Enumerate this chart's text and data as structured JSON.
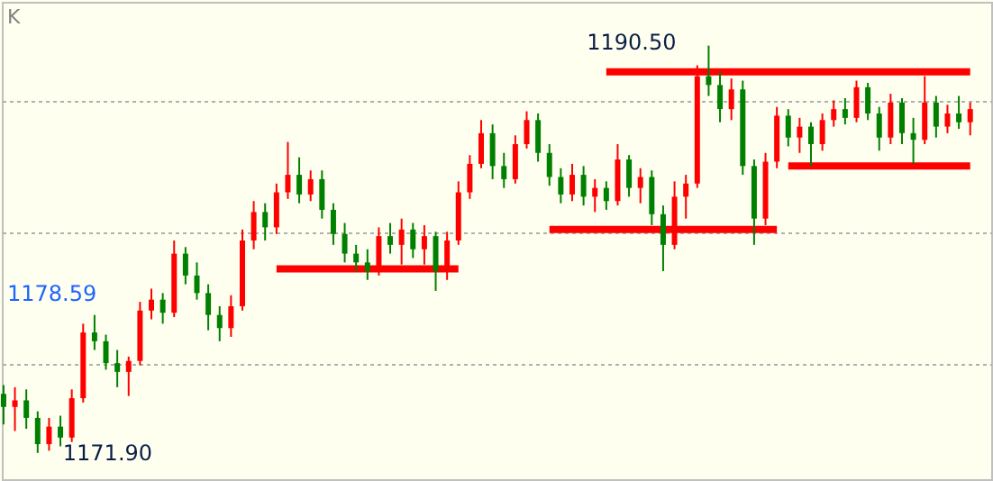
{
  "chart_data": {
    "type": "candlestick",
    "title": "K",
    "categories": [
      null,
      null,
      null,
      null,
      null,
      null,
      null,
      null,
      null,
      null,
      null,
      null,
      null,
      null,
      null,
      null,
      null,
      null,
      null,
      null,
      null,
      null,
      null,
      null,
      null,
      null,
      null,
      null,
      null,
      null,
      null,
      null,
      null,
      null,
      null,
      null,
      null,
      null,
      null,
      null,
      null,
      null,
      null,
      null,
      null,
      null,
      null,
      null,
      null,
      null,
      null,
      null,
      null,
      null,
      null,
      null,
      null,
      null,
      null,
      null,
      null,
      null,
      null,
      null,
      null,
      null,
      null,
      null,
      null,
      null,
      null,
      null,
      null,
      null,
      null,
      null,
      null,
      null,
      null,
      null,
      null,
      null,
      null,
      null,
      null,
      null
    ],
    "ohlc": [
      [
        1174.6,
        1175.0,
        1173.2,
        1174.0
      ],
      [
        1174.0,
        1174.9,
        1172.9,
        1174.3
      ],
      [
        1174.3,
        1174.8,
        1173.0,
        1173.5
      ],
      [
        1173.5,
        1173.8,
        1171.9,
        1172.3
      ],
      [
        1172.3,
        1173.5,
        1172.0,
        1173.1
      ],
      [
        1173.1,
        1173.6,
        1172.2,
        1172.6
      ],
      [
        1172.6,
        1174.8,
        1172.4,
        1174.4
      ],
      [
        1174.4,
        1177.8,
        1174.2,
        1177.4
      ],
      [
        1177.4,
        1178.2,
        1176.6,
        1177.0
      ],
      [
        1177.0,
        1177.3,
        1175.7,
        1176.0
      ],
      [
        1176.0,
        1176.6,
        1174.9,
        1175.6
      ],
      [
        1175.6,
        1176.3,
        1174.5,
        1176.1
      ],
      [
        1176.1,
        1178.8,
        1175.9,
        1178.4
      ],
      [
        1178.4,
        1179.4,
        1178.0,
        1178.9
      ],
      [
        1178.9,
        1179.2,
        1177.8,
        1178.3
      ],
      [
        1178.3,
        1181.6,
        1178.1,
        1181.0
      ],
      [
        1181.0,
        1181.3,
        1179.6,
        1180.0
      ],
      [
        1180.0,
        1180.6,
        1178.9,
        1179.2
      ],
      [
        1179.2,
        1179.6,
        1177.5,
        1178.2
      ],
      [
        1178.2,
        1178.6,
        1177.0,
        1177.6
      ],
      [
        1177.6,
        1179.1,
        1177.2,
        1178.6
      ],
      [
        1178.6,
        1182.1,
        1178.4,
        1181.6
      ],
      [
        1181.6,
        1183.4,
        1181.2,
        1182.9
      ],
      [
        1182.9,
        1183.3,
        1181.6,
        1182.2
      ],
      [
        1182.2,
        1184.2,
        1181.9,
        1183.8
      ],
      [
        1183.8,
        1186.1,
        1183.5,
        1184.6
      ],
      [
        1184.6,
        1185.4,
        1183.3,
        1183.7
      ],
      [
        1183.7,
        1184.8,
        1183.4,
        1184.4
      ],
      [
        1184.4,
        1184.8,
        1182.6,
        1183.0
      ],
      [
        1183.0,
        1183.3,
        1181.4,
        1181.9
      ],
      [
        1181.9,
        1182.4,
        1180.6,
        1181.0
      ],
      [
        1181.0,
        1181.4,
        1180.2,
        1180.6
      ],
      [
        1180.6,
        1181.2,
        1179.8,
        1180.2
      ],
      [
        1180.2,
        1182.2,
        1180.0,
        1181.8
      ],
      [
        1181.8,
        1182.4,
        1181.0,
        1181.4
      ],
      [
        1181.4,
        1182.6,
        1180.5,
        1182.1
      ],
      [
        1182.1,
        1182.4,
        1180.8,
        1181.2
      ],
      [
        1181.2,
        1182.3,
        1180.5,
        1181.8
      ],
      [
        1181.8,
        1182.0,
        1179.3,
        1180.2
      ],
      [
        1180.2,
        1182.0,
        1179.8,
        1181.6
      ],
      [
        1181.6,
        1184.3,
        1181.4,
        1183.8
      ],
      [
        1183.8,
        1185.5,
        1183.5,
        1185.1
      ],
      [
        1185.1,
        1187.1,
        1184.9,
        1186.5
      ],
      [
        1186.5,
        1186.9,
        1184.4,
        1185.0
      ],
      [
        1185.0,
        1185.6,
        1184.0,
        1184.4
      ],
      [
        1184.4,
        1186.4,
        1184.2,
        1186.0
      ],
      [
        1186.0,
        1187.5,
        1185.8,
        1187.1
      ],
      [
        1187.1,
        1187.4,
        1185.2,
        1185.6
      ],
      [
        1185.6,
        1186.0,
        1184.1,
        1184.5
      ],
      [
        1184.5,
        1184.9,
        1183.3,
        1183.7
      ],
      [
        1183.7,
        1185.1,
        1183.4,
        1184.6
      ],
      [
        1184.6,
        1185.0,
        1183.2,
        1183.6
      ],
      [
        1183.6,
        1184.4,
        1182.9,
        1184.0
      ],
      [
        1184.0,
        1184.3,
        1183.0,
        1183.4
      ],
      [
        1183.4,
        1186.0,
        1183.2,
        1185.3
      ],
      [
        1185.3,
        1185.5,
        1183.6,
        1184.0
      ],
      [
        1184.0,
        1184.9,
        1183.3,
        1184.5
      ],
      [
        1184.5,
        1184.8,
        1182.3,
        1182.8
      ],
      [
        1182.8,
        1183.2,
        1180.2,
        1181.4
      ],
      [
        1181.4,
        1184.3,
        1181.2,
        1183.6
      ],
      [
        1183.6,
        1184.6,
        1182.6,
        1184.2
      ],
      [
        1184.2,
        1189.6,
        1184.0,
        1189.1
      ],
      [
        1189.1,
        1190.5,
        1188.2,
        1188.7
      ],
      [
        1188.7,
        1189.3,
        1187.0,
        1187.6
      ],
      [
        1187.6,
        1189.0,
        1187.1,
        1188.5
      ],
      [
        1188.5,
        1188.9,
        1184.6,
        1185.0
      ],
      [
        1185.0,
        1185.3,
        1181.4,
        1182.6
      ],
      [
        1182.6,
        1185.6,
        1182.3,
        1185.2
      ],
      [
        1185.2,
        1187.7,
        1184.9,
        1187.3
      ],
      [
        1187.3,
        1187.6,
        1185.9,
        1186.3
      ],
      [
        1186.3,
        1187.2,
        1185.6,
        1186.8
      ],
      [
        1186.8,
        1187.0,
        1185.0,
        1186.0
      ],
      [
        1186.0,
        1187.4,
        1185.7,
        1187.1
      ],
      [
        1187.1,
        1188.0,
        1186.8,
        1187.6
      ],
      [
        1187.6,
        1188.1,
        1186.9,
        1187.2
      ],
      [
        1187.2,
        1188.9,
        1187.0,
        1188.6
      ],
      [
        1188.6,
        1188.8,
        1187.1,
        1187.4
      ],
      [
        1187.4,
        1187.7,
        1185.7,
        1186.3
      ],
      [
        1186.3,
        1188.3,
        1186.0,
        1187.9
      ],
      [
        1187.9,
        1188.1,
        1186.0,
        1186.5
      ],
      [
        1186.5,
        1187.2,
        1185.1,
        1186.2
      ],
      [
        1186.2,
        1189.1,
        1186.0,
        1187.9
      ],
      [
        1187.9,
        1188.2,
        1186.3,
        1186.8
      ],
      [
        1186.8,
        1187.8,
        1186.5,
        1187.4
      ],
      [
        1187.4,
        1188.2,
        1186.7,
        1187.0
      ],
      [
        1187.0,
        1187.9,
        1186.4,
        1187.6
      ]
    ],
    "colors": [
      "#008000",
      "#ff0000",
      "#008000",
      "#008000",
      "#ff0000",
      "#008000",
      "#ff0000",
      "#ff0000",
      "#008000",
      "#008000",
      "#008000",
      "#ff0000",
      "#ff0000",
      "#ff0000",
      "#008000",
      "#ff0000",
      "#008000",
      "#008000",
      "#008000",
      "#008000",
      "#ff0000",
      "#ff0000",
      "#ff0000",
      "#008000",
      "#ff0000",
      "#ff0000",
      "#008000",
      "#ff0000",
      "#008000",
      "#008000",
      "#008000",
      "#008000",
      "#008000",
      "#ff0000",
      "#008000",
      "#ff0000",
      "#008000",
      "#ff0000",
      "#008000",
      "#ff0000",
      "#ff0000",
      "#ff0000",
      "#ff0000",
      "#008000",
      "#008000",
      "#ff0000",
      "#ff0000",
      "#008000",
      "#008000",
      "#008000",
      "#ff0000",
      "#008000",
      "#ff0000",
      "#008000",
      "#ff0000",
      "#008000",
      "#ff0000",
      "#008000",
      "#008000",
      "#ff0000",
      "#ff0000",
      "#ff0000",
      "#008000",
      "#008000",
      "#ff0000",
      "#008000",
      "#008000",
      "#ff0000",
      "#ff0000",
      "#008000",
      "#ff0000",
      "#008000",
      "#ff0000",
      "#ff0000",
      "#008000",
      "#ff0000",
      "#008000",
      "#008000",
      "#ff0000",
      "#008000",
      "#008000",
      "#ff0000",
      "#008000",
      "#ff0000",
      "#008000",
      "#ff0000"
    ],
    "series": [
      {
        "type": "line",
        "color": "#ff0000",
        "values": [
          null,
          null,
          null,
          null,
          null,
          null,
          null,
          null,
          null,
          null,
          null,
          null,
          null,
          null,
          null,
          null,
          null,
          null,
          null,
          null,
          null,
          null,
          null,
          null,
          1180.3,
          1180.3,
          1180.3,
          1180.3,
          1180.3,
          1180.3,
          1180.3,
          1180.3,
          1180.3,
          1180.3,
          1180.3,
          1180.3,
          1180.3,
          1180.3,
          1180.3,
          1180.3,
          1180.3,
          null,
          null,
          null,
          null,
          null,
          null,
          null,
          null,
          null,
          null,
          null,
          null,
          null,
          null,
          null,
          null,
          null,
          null,
          null,
          null,
          null,
          null,
          null,
          null,
          null,
          null,
          null,
          null,
          null,
          null,
          null,
          null,
          null,
          null,
          null,
          null,
          null,
          null,
          null,
          null,
          null,
          null,
          null,
          null,
          null
        ]
      },
      {
        "type": "line",
        "color": "#ff0000",
        "values": [
          null,
          null,
          null,
          null,
          null,
          null,
          null,
          null,
          null,
          null,
          null,
          null,
          null,
          null,
          null,
          null,
          null,
          null,
          null,
          null,
          null,
          null,
          null,
          null,
          null,
          null,
          null,
          null,
          null,
          null,
          null,
          null,
          null,
          null,
          null,
          null,
          null,
          null,
          null,
          null,
          null,
          null,
          null,
          null,
          null,
          null,
          null,
          null,
          1182.1,
          1182.1,
          1182.1,
          1182.1,
          1182.1,
          1182.1,
          1182.1,
          1182.1,
          1182.1,
          1182.1,
          1182.1,
          1182.1,
          1182.1,
          1182.1,
          1182.1,
          1182.1,
          1182.1,
          1182.1,
          1182.1,
          1182.1,
          1182.1,
          null,
          null,
          null,
          null,
          null,
          null,
          null,
          null,
          null,
          null,
          null,
          null,
          null,
          null,
          null,
          null,
          null
        ]
      },
      {
        "type": "line",
        "color": "#ff0000",
        "values": [
          null,
          null,
          null,
          null,
          null,
          null,
          null,
          null,
          null,
          null,
          null,
          null,
          null,
          null,
          null,
          null,
          null,
          null,
          null,
          null,
          null,
          null,
          null,
          null,
          null,
          null,
          null,
          null,
          null,
          null,
          null,
          null,
          null,
          null,
          null,
          null,
          null,
          null,
          null,
          null,
          null,
          null,
          null,
          null,
          null,
          null,
          null,
          null,
          null,
          null,
          null,
          null,
          null,
          1189.3,
          1189.3,
          1189.3,
          1189.3,
          1189.3,
          1189.3,
          1189.3,
          1189.3,
          1189.3,
          1189.3,
          1189.3,
          1189.3,
          1189.3,
          1189.3,
          1189.3,
          1189.3,
          1189.3,
          1189.3,
          1189.3,
          1189.3,
          1189.3,
          1189.3,
          1189.3,
          1189.3,
          1189.3,
          1189.3,
          1189.3,
          1189.3,
          1189.3,
          1189.3,
          1189.3,
          1189.3,
          1189.3
        ]
      },
      {
        "type": "line",
        "color": "#ff0000",
        "values": [
          null,
          null,
          null,
          null,
          null,
          null,
          null,
          null,
          null,
          null,
          null,
          null,
          null,
          null,
          null,
          null,
          null,
          null,
          null,
          null,
          null,
          null,
          null,
          null,
          null,
          null,
          null,
          null,
          null,
          null,
          null,
          null,
          null,
          null,
          null,
          null,
          null,
          null,
          null,
          null,
          null,
          null,
          null,
          null,
          null,
          null,
          null,
          null,
          null,
          null,
          null,
          null,
          null,
          null,
          null,
          null,
          null,
          null,
          null,
          null,
          null,
          null,
          null,
          null,
          null,
          null,
          null,
          null,
          null,
          1185.0,
          1185.0,
          1185.0,
          1185.0,
          1185.0,
          1185.0,
          1185.0,
          1185.0,
          1185.0,
          1185.0,
          1185.0,
          1185.0,
          1185.0,
          1185.0,
          1185.0,
          1185.0,
          1185.0
        ]
      }
    ],
    "ylim": [
      1170.7,
      1192.5
    ],
    "yticks": [
      {
        "value": 1176,
        "label": null
      },
      {
        "value": 1182,
        "label": null
      },
      {
        "value": 1188,
        "label": null
      }
    ],
    "grid": "y",
    "annotations": [
      "1190.50",
      "1171.90",
      "1178.59"
    ]
  }
}
